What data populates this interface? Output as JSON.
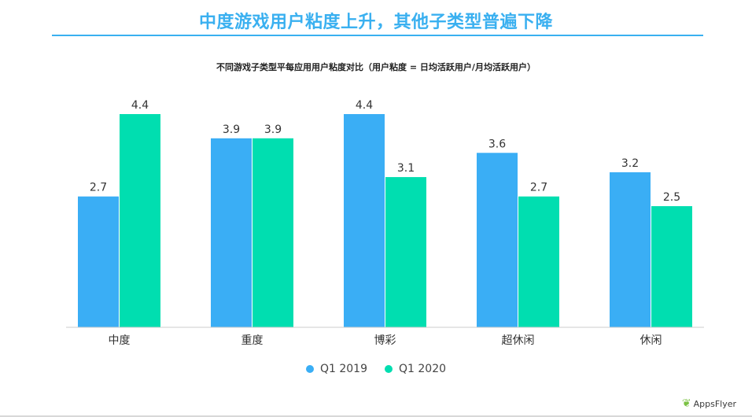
{
  "slide_title": "中度游戏用户粘度上升，其他子类型普遍下降",
  "chart_data": {
    "type": "bar",
    "title": "不同游戏子类型平每应用用户粘度对比（用户粘度 = 日均活跃用户/月均活跃用户）",
    "categories": [
      "中度",
      "重度",
      "博彩",
      "超休闲",
      "休闲"
    ],
    "series": [
      {
        "name": "Q1 2019",
        "values": [
          2.7,
          3.9,
          4.4,
          3.6,
          3.2
        ],
        "color": "#3aaef5"
      },
      {
        "name": "Q1 2020",
        "values": [
          4.4,
          3.9,
          3.1,
          2.7,
          2.5
        ],
        "color": "#00deb0"
      }
    ],
    "ylim": [
      0,
      4.4
    ],
    "grid": false,
    "legend": "bottom-center",
    "xlabel": "",
    "ylabel": ""
  },
  "logo": {
    "text": "AppsFlyer",
    "icon": "appsflyer-wing-icon"
  }
}
